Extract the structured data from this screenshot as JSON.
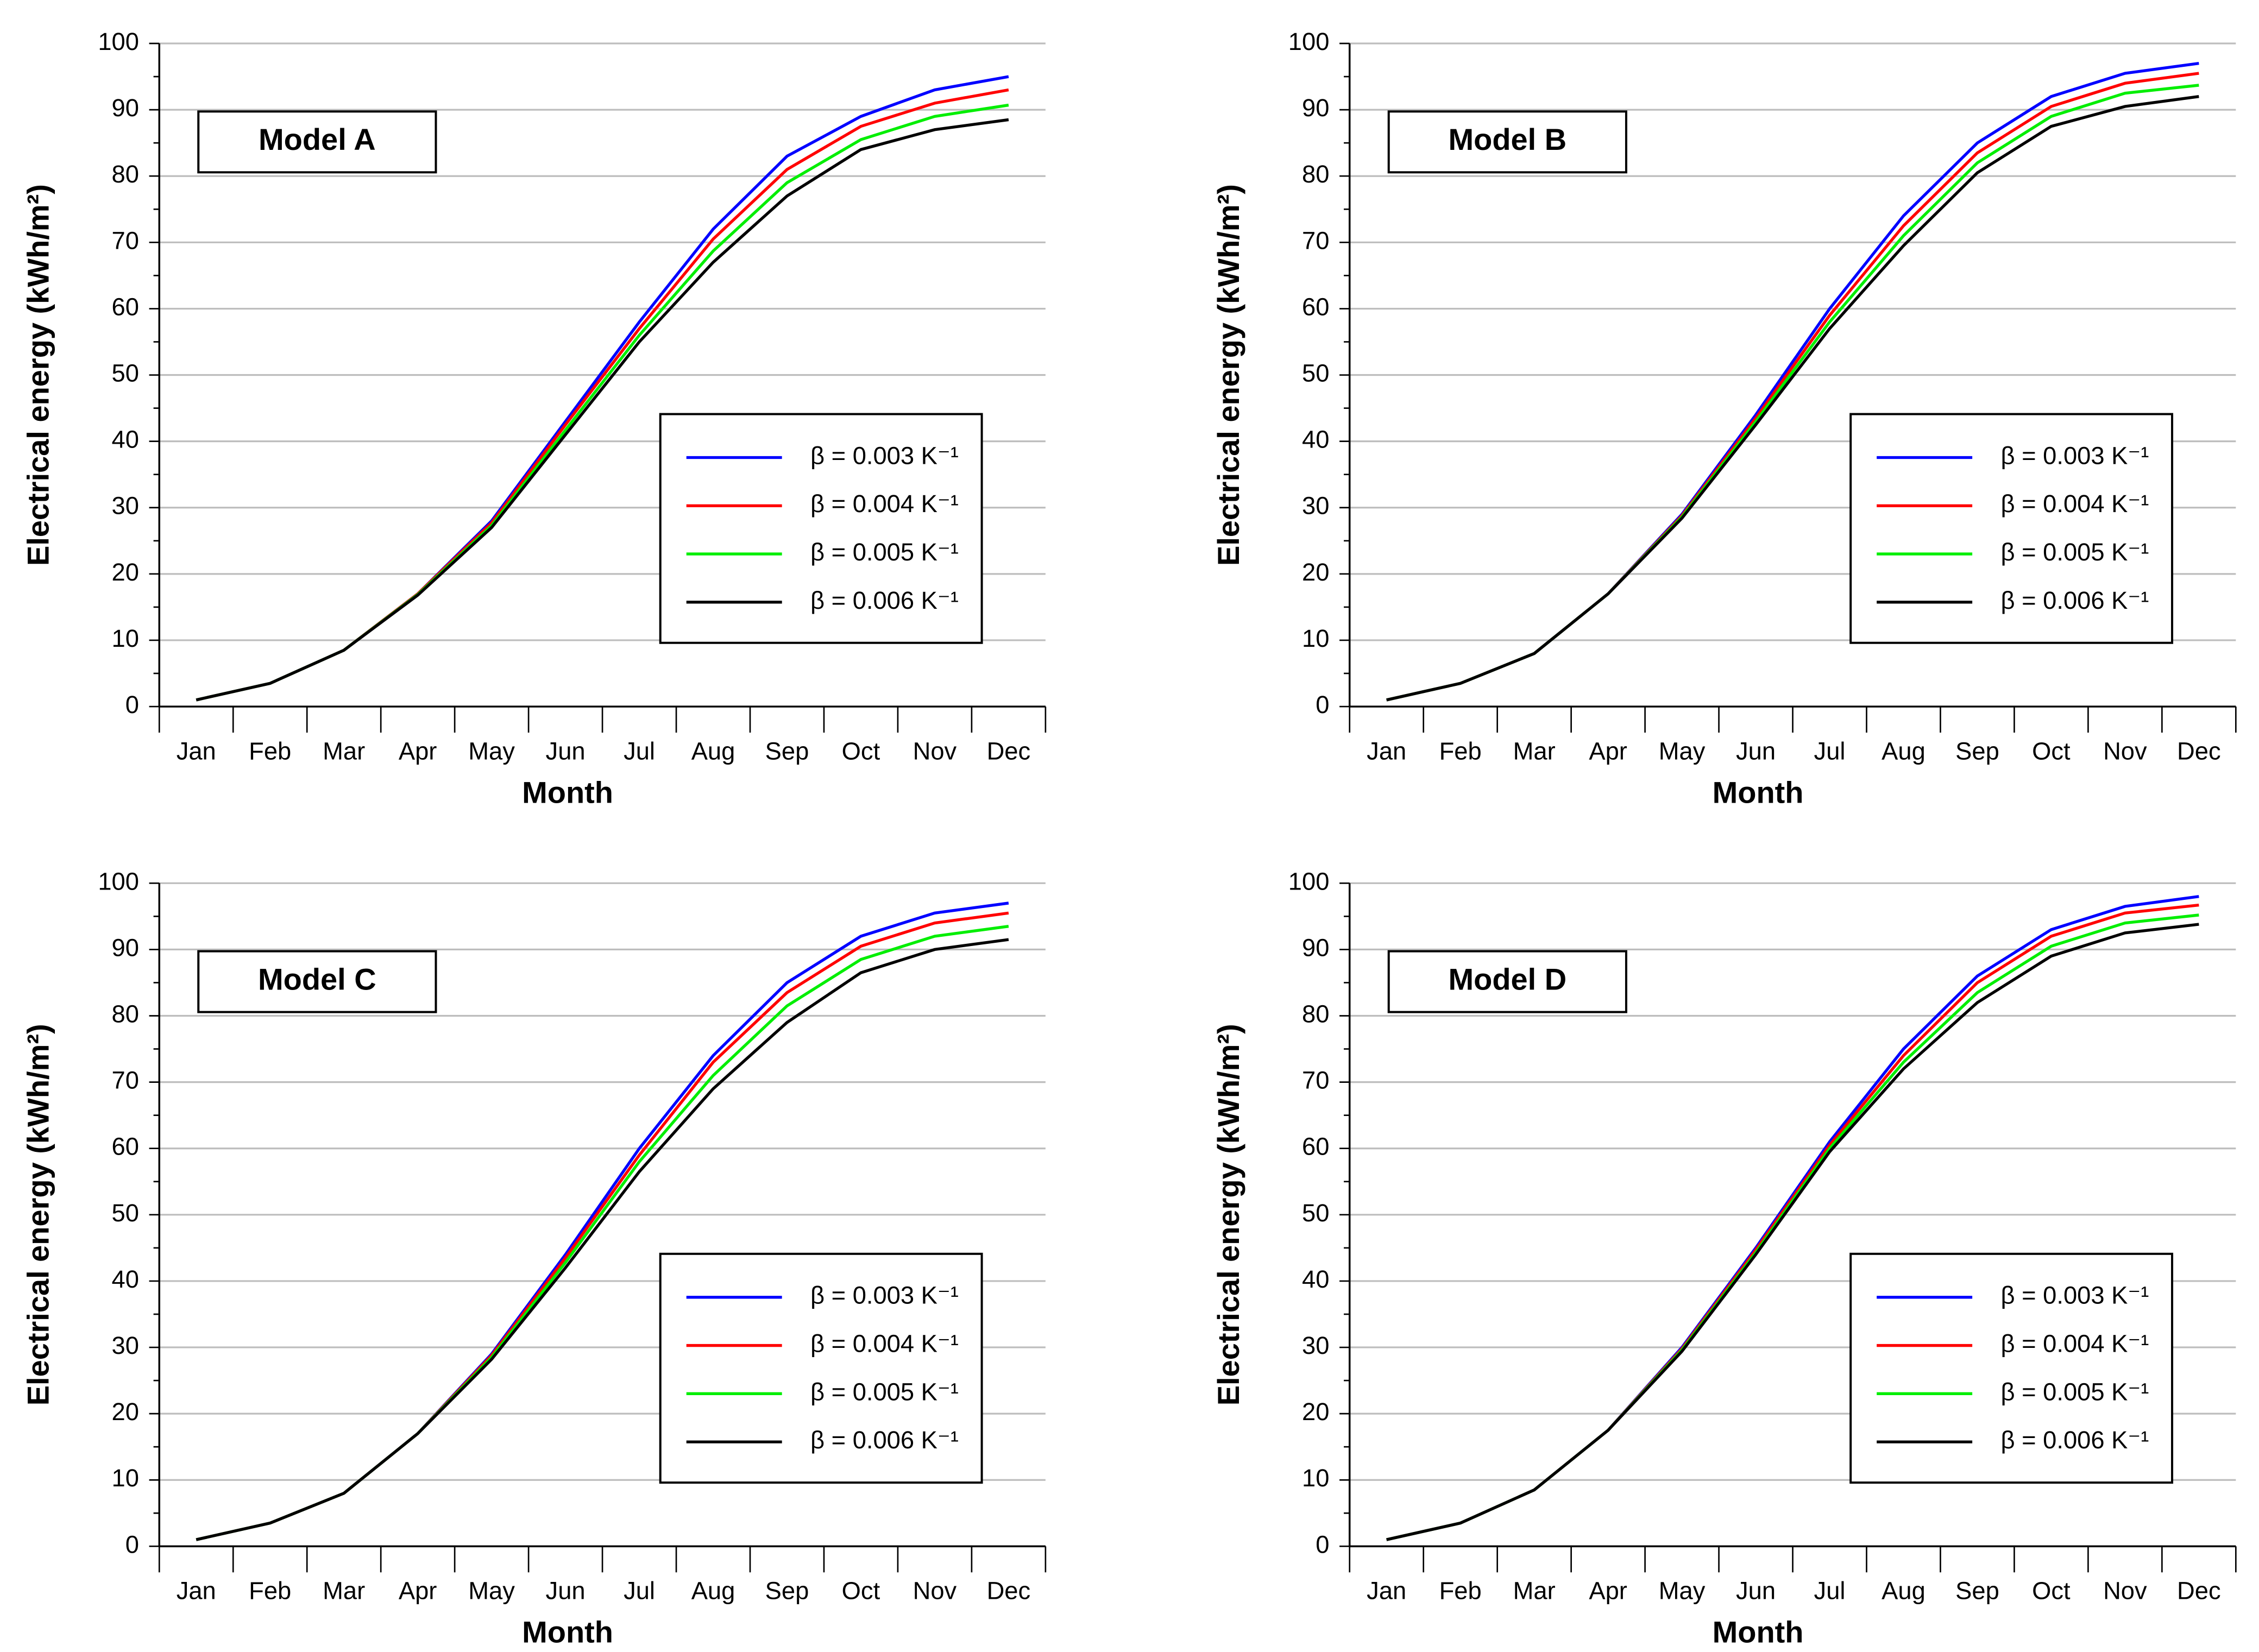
{
  "chart_data": [
    {
      "type": "line",
      "annotation": "Model A",
      "x_label": "Month",
      "y_label": "Electrical energy (kWh/m²)",
      "categories": [
        "Jan",
        "Feb",
        "Mar",
        "Apr",
        "May",
        "Jun",
        "Jul",
        "Aug",
        "Sep",
        "Oct",
        "Nov",
        "Dec"
      ],
      "ylim": [
        0,
        100
      ],
      "yticks": [
        0,
        10,
        20,
        30,
        40,
        50,
        60,
        70,
        80,
        90,
        100
      ],
      "grid": true,
      "legend": "center right",
      "series": [
        {
          "name": "β = 0.003 K⁻¹",
          "color": "#0000ff",
          "values": [
            1,
            3.5,
            8.5,
            17,
            28,
            43,
            58,
            72,
            83,
            89,
            93,
            95
          ]
        },
        {
          "name": "β = 0.004 K⁻¹",
          "color": "#ff0000",
          "values": [
            1,
            3.5,
            8.5,
            17,
            27.7,
            42.5,
            57,
            70.5,
            81,
            87.5,
            91,
            93
          ]
        },
        {
          "name": "β = 0.005 K⁻¹",
          "color": "#00ee00",
          "values": [
            1,
            3.5,
            8.5,
            16.9,
            27.3,
            41.7,
            56,
            68.7,
            79,
            85.5,
            89,
            90.7
          ]
        },
        {
          "name": "β = 0.006 K⁻¹",
          "color": "#000000",
          "values": [
            1,
            3.5,
            8.5,
            16.8,
            27,
            41,
            55,
            67,
            77,
            84,
            87,
            88.5
          ]
        }
      ]
    },
    {
      "type": "line",
      "annotation": "Model B",
      "x_label": "Month",
      "y_label": "Electrical energy (kWh/m²)",
      "categories": [
        "Jan",
        "Feb",
        "Mar",
        "Apr",
        "May",
        "Jun",
        "Jul",
        "Aug",
        "Sep",
        "Oct",
        "Nov",
        "Dec"
      ],
      "ylim": [
        0,
        100
      ],
      "yticks": [
        0,
        10,
        20,
        30,
        40,
        50,
        60,
        70,
        80,
        90,
        100
      ],
      "grid": true,
      "legend": "center right",
      "series": [
        {
          "name": "β = 0.003 K⁻¹",
          "color": "#0000ff",
          "values": [
            1,
            3.5,
            8,
            17,
            29,
            44,
            60,
            74,
            85,
            92,
            95.5,
            97
          ]
        },
        {
          "name": "β = 0.004 K⁻¹",
          "color": "#ff0000",
          "values": [
            1,
            3.5,
            8,
            17,
            28.8,
            43.5,
            59,
            72.5,
            83.5,
            90.5,
            94,
            95.5
          ]
        },
        {
          "name": "β = 0.005 K⁻¹",
          "color": "#00ee00",
          "values": [
            1,
            3.5,
            8,
            17,
            28.6,
            43,
            58,
            71,
            82,
            89,
            92.5,
            93.7
          ]
        },
        {
          "name": "β = 0.006 K⁻¹",
          "color": "#000000",
          "values": [
            1,
            3.5,
            8,
            17,
            28.4,
            42.5,
            57,
            69.5,
            80.5,
            87.5,
            90.5,
            92
          ]
        }
      ]
    },
    {
      "type": "line",
      "annotation": "Model C",
      "x_label": "Month",
      "y_label": "Electrical energy (kWh/m²)",
      "categories": [
        "Jan",
        "Feb",
        "Mar",
        "Apr",
        "May",
        "Jun",
        "Jul",
        "Aug",
        "Sep",
        "Oct",
        "Nov",
        "Dec"
      ],
      "ylim": [
        0,
        100
      ],
      "yticks": [
        0,
        10,
        20,
        30,
        40,
        50,
        60,
        70,
        80,
        90,
        100
      ],
      "grid": true,
      "legend": "center right",
      "series": [
        {
          "name": "β = 0.003 K⁻¹",
          "color": "#0000ff",
          "values": [
            1,
            3.5,
            8,
            17,
            29,
            44,
            60,
            74,
            85,
            92,
            95.5,
            97
          ]
        },
        {
          "name": "β = 0.004 K⁻¹",
          "color": "#ff0000",
          "values": [
            1,
            3.5,
            8,
            17,
            28.8,
            43.5,
            59,
            73,
            83.5,
            90.5,
            94,
            95.5
          ]
        },
        {
          "name": "β = 0.005 K⁻¹",
          "color": "#00ee00",
          "values": [
            1,
            3.5,
            8,
            17,
            28.5,
            42.8,
            58,
            71,
            81.5,
            88.5,
            92,
            93.5
          ]
        },
        {
          "name": "β = 0.006 K⁻¹",
          "color": "#000000",
          "values": [
            1,
            3.5,
            8,
            17,
            28.2,
            42,
            56.5,
            69,
            79,
            86.5,
            90,
            91.5
          ]
        }
      ]
    },
    {
      "type": "line",
      "annotation": "Model D",
      "x_label": "Month",
      "y_label": "Electrical energy (kWh/m²)",
      "categories": [
        "Jan",
        "Feb",
        "Mar",
        "Apr",
        "May",
        "Jun",
        "Jul",
        "Aug",
        "Sep",
        "Oct",
        "Nov",
        "Dec"
      ],
      "ylim": [
        0,
        100
      ],
      "yticks": [
        0,
        10,
        20,
        30,
        40,
        50,
        60,
        70,
        80,
        90,
        100
      ],
      "grid": true,
      "legend": "center right",
      "series": [
        {
          "name": "β = 0.003 K⁻¹",
          "color": "#0000ff",
          "values": [
            1,
            3.5,
            8.5,
            17.5,
            30,
            45,
            61,
            75,
            86,
            93,
            96.5,
            98
          ]
        },
        {
          "name": "β = 0.004 K⁻¹",
          "color": "#ff0000",
          "values": [
            1,
            3.5,
            8.5,
            17.5,
            29.8,
            44.7,
            60.5,
            74,
            85,
            92,
            95.5,
            96.7
          ]
        },
        {
          "name": "β = 0.005 K⁻¹",
          "color": "#00ee00",
          "values": [
            1,
            3.5,
            8.5,
            17.5,
            29.6,
            44.3,
            60,
            73,
            83.5,
            90.5,
            94,
            95.2
          ]
        },
        {
          "name": "β = 0.006 K⁻¹",
          "color": "#000000",
          "values": [
            1,
            3.5,
            8.5,
            17.5,
            29.4,
            44,
            59.5,
            72,
            82,
            89,
            92.5,
            93.8
          ]
        }
      ]
    }
  ]
}
